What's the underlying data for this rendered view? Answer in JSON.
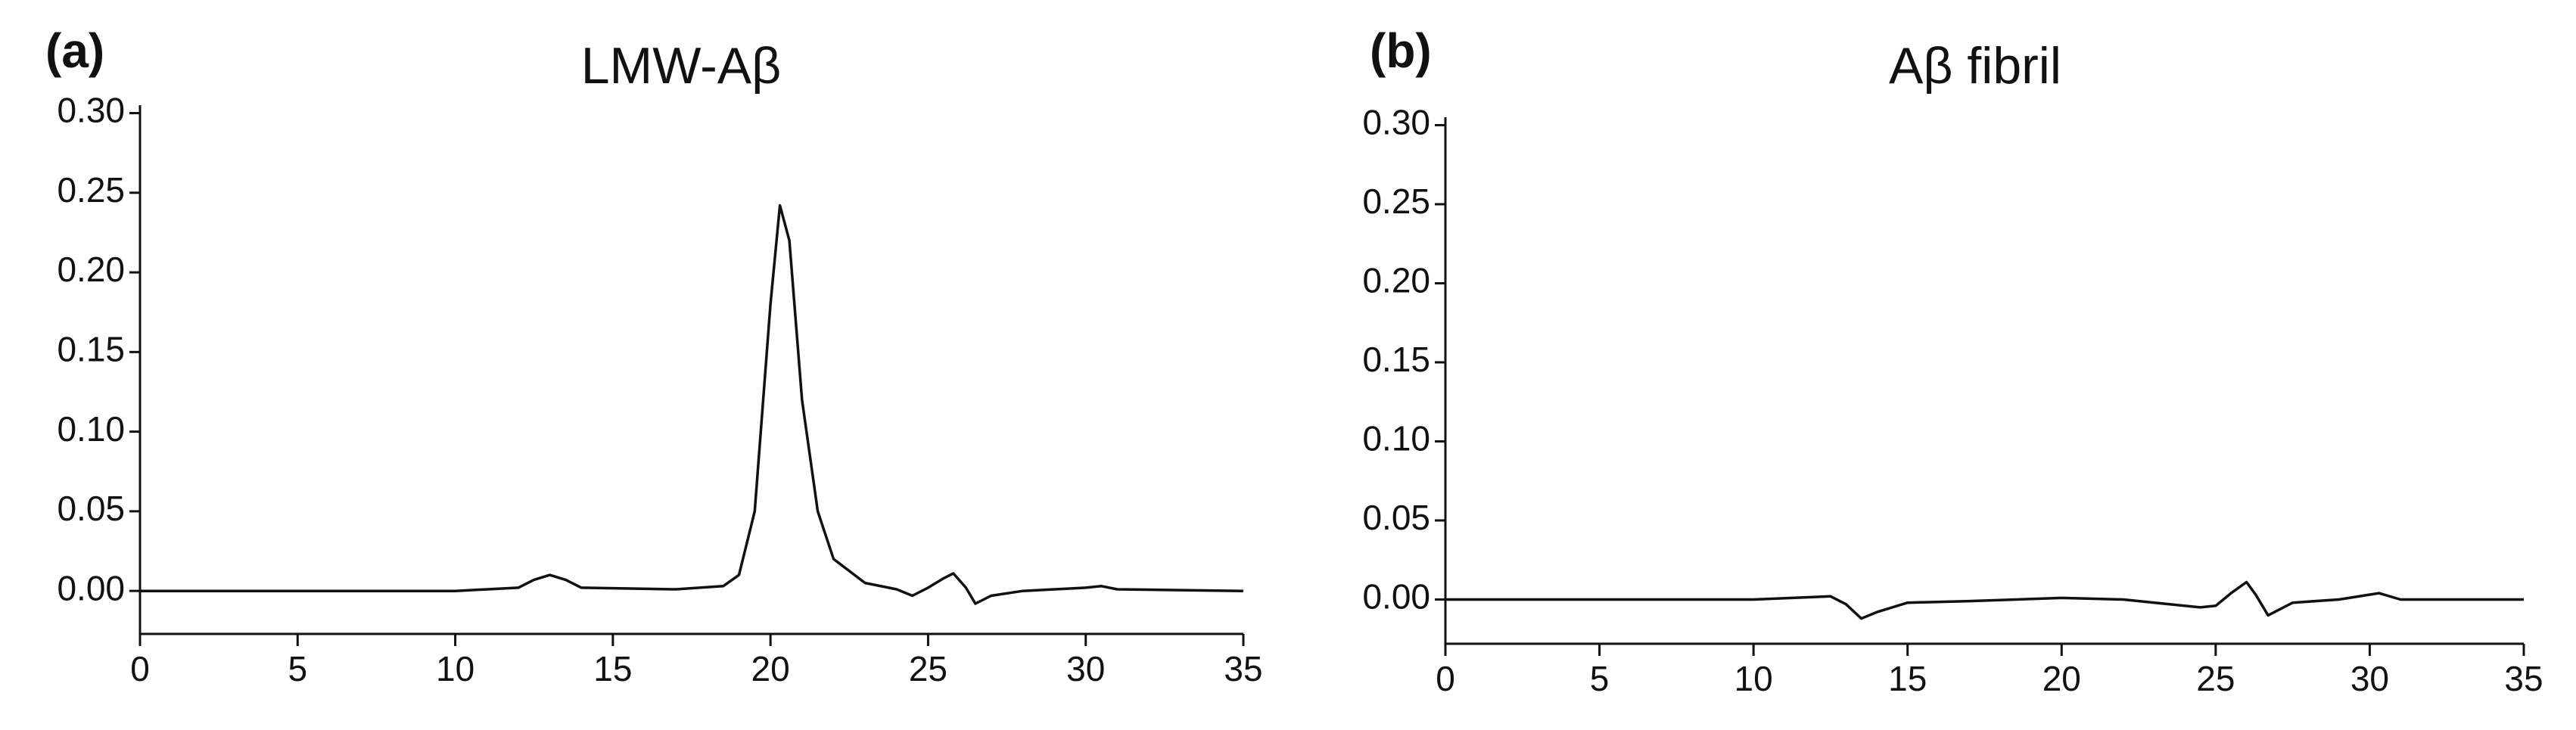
{
  "chart_data": [
    {
      "type": "line",
      "panel_label": "(a)",
      "title": "LMW-Aβ",
      "color": "#111111",
      "x": [
        0,
        5,
        10,
        12,
        12.5,
        13,
        13.5,
        14,
        17,
        18.5,
        19,
        19.5,
        20,
        20.3,
        20.6,
        21,
        21.5,
        22,
        23,
        24,
        24.5,
        25,
        25.5,
        25.8,
        26.2,
        26.5,
        27,
        28,
        30,
        30.5,
        31,
        35
      ],
      "values": [
        0,
        0,
        0,
        0.002,
        0.007,
        0.01,
        0.007,
        0.002,
        0.001,
        0.003,
        0.01,
        0.05,
        0.18,
        0.242,
        0.22,
        0.12,
        0.05,
        0.02,
        0.005,
        0.001,
        -0.003,
        0.002,
        0.008,
        0.011,
        0.002,
        -0.008,
        -0.003,
        0,
        0.002,
        0.003,
        0.001,
        0
      ],
      "xlim": [
        0,
        35
      ],
      "ylim": [
        -0.027,
        0.305
      ],
      "xticks": [
        0,
        5,
        10,
        15,
        20,
        25,
        30,
        35
      ],
      "yticks": [
        {
          "value": 0,
          "label": "0.00"
        },
        {
          "value": 0.05,
          "label": "0.05"
        },
        {
          "value": 0.1,
          "label": "0.10"
        },
        {
          "value": 0.15,
          "label": "0.15"
        },
        {
          "value": 0.2,
          "label": "0.20"
        },
        {
          "value": 0.25,
          "label": "0.25"
        },
        {
          "value": 0.3,
          "label": "0.30"
        }
      ]
    },
    {
      "type": "line",
      "panel_label": "(b)",
      "title": "Aβ fibril",
      "color": "#111111",
      "x": [
        0,
        10,
        12.5,
        13,
        13.5,
        14,
        15,
        17,
        20,
        22,
        23.5,
        24.5,
        25,
        25.5,
        26,
        26.3,
        26.7,
        27.5,
        29,
        30.3,
        31,
        35
      ],
      "values": [
        0,
        0,
        0.002,
        -0.003,
        -0.012,
        -0.008,
        -0.002,
        -0.001,
        0.001,
        0,
        -0.003,
        -0.005,
        -0.004,
        0.004,
        0.011,
        0.003,
        -0.01,
        -0.002,
        0,
        0.004,
        0,
        0
      ],
      "xlim": [
        0,
        35
      ],
      "ylim": [
        -0.028,
        0.305
      ],
      "xticks": [
        0,
        5,
        10,
        15,
        20,
        25,
        30,
        35
      ],
      "yticks": [
        {
          "value": 0,
          "label": "0.00"
        },
        {
          "value": 0.05,
          "label": "0.05"
        },
        {
          "value": 0.1,
          "label": "0.10"
        },
        {
          "value": 0.15,
          "label": "0.15"
        },
        {
          "value": 0.2,
          "label": "0.20"
        },
        {
          "value": 0.25,
          "label": "0.25"
        },
        {
          "value": 0.3,
          "label": "0.30"
        }
      ]
    }
  ]
}
